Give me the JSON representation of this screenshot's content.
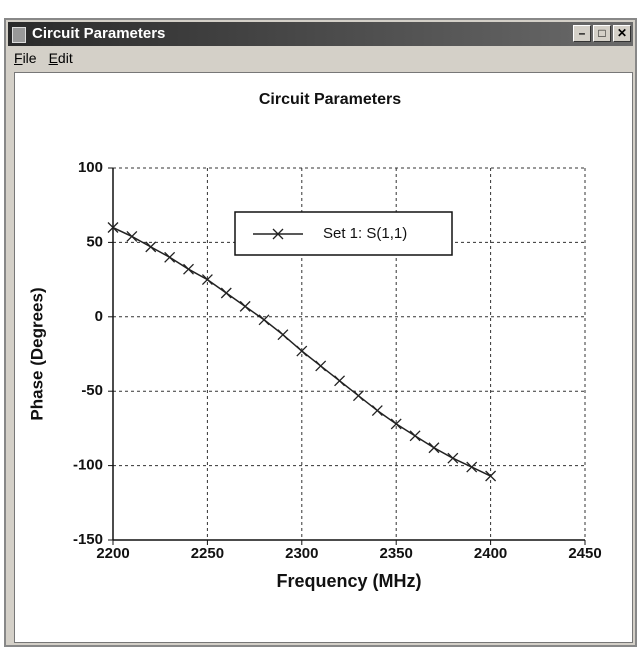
{
  "window": {
    "title": "Circuit Parameters",
    "menu": [
      "File",
      "Edit"
    ]
  },
  "chart_data": {
    "type": "line",
    "title": "Circuit Parameters",
    "x_label": "Frequency (MHz)",
    "y_label": "Phase (Degrees)",
    "x": [
      2200,
      2210,
      2220,
      2230,
      2240,
      2250,
      2260,
      2270,
      2280,
      2290,
      2300,
      2310,
      2320,
      2330,
      2340,
      2350,
      2360,
      2370,
      2380,
      2390,
      2400
    ],
    "series": [
      {
        "name": "Set 1: S(1,1)",
        "color": "#222222",
        "values": [
          60,
          54,
          47,
          40,
          32,
          25,
          16,
          7,
          -2,
          -12,
          -23,
          -33,
          -43,
          -53,
          -63,
          -72,
          -80,
          -88,
          -95,
          -101,
          -107
        ]
      }
    ],
    "xlim": [
      2200,
      2450
    ],
    "xticks": [
      2200,
      2250,
      2300,
      2350,
      2400,
      2450
    ],
    "ylim": [
      -150,
      100
    ],
    "yticks": [
      -150,
      -100,
      -50,
      0,
      50,
      100
    ],
    "grid": true,
    "legend": "top"
  }
}
